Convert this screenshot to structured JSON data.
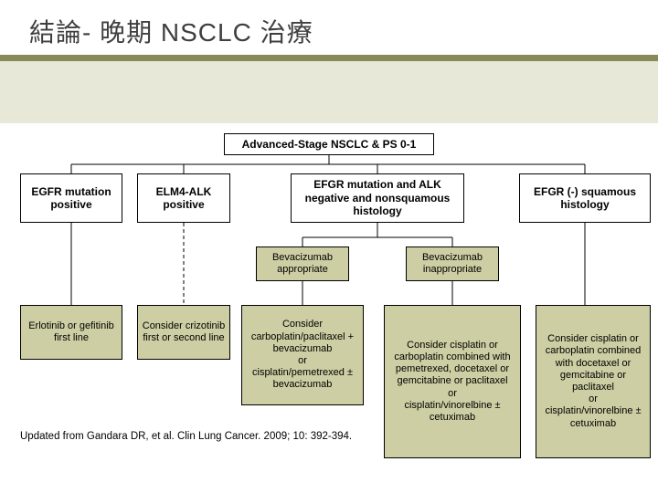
{
  "title": "結論- 晚期 NSCLC 治療",
  "root": "Advanced-Stage NSCLC & PS 0-1",
  "level1": {
    "a": "EGFR mutation positive",
    "b": "ELM4-ALK positive",
    "c": "EFGR mutation and ALK negative and nonsquamous histology",
    "d": "EFGR (-) squamous histology"
  },
  "level2": {
    "bev_yes": "Bevacizumab appropriate",
    "bev_no": "Bevacizumab inappropriate"
  },
  "leaf": {
    "a": "Erlotinib or gefitinib\nfirst line",
    "b": "Consider crizotinib first or second line",
    "c1": "Consider carboplatin/paclitaxel + bevacizumab\nor\ncisplatin/pemetrexed ± bevacizumab",
    "c2": "Consider cisplatin or carboplatin combined with pemetrexed, docetaxel or gemcitabine or paclitaxel\nor\ncisplatin/vinorelbine ± cetuximab",
    "d": "Consider cisplatin or carboplatin combined with docetaxel or gemcitabine or paclitaxel\nor\ncisplatin/vinorelbine ± cetuximab"
  },
  "citation": "Updated from Gandara DR, et al. Clin Lung Cancer. 2009; 10: 392-394.",
  "colors": {
    "band": "#e7e8d7",
    "bar": "#888b58",
    "tan": "#cdcea3",
    "line": "#000000",
    "text": "#3f3f3f"
  },
  "connectors": {
    "stroke": "#000000",
    "stroke_width": 1,
    "dash": "4 3"
  }
}
